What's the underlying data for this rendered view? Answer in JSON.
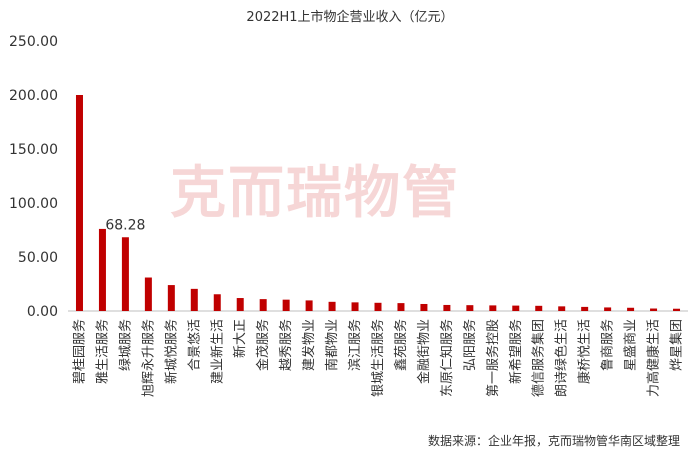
{
  "chart_data": {
    "type": "bar",
    "title": "2022H1上市物企营业收入（亿元）",
    "watermark": "克而瑞物管",
    "source": "数据来源：企业年报，克而瑞物管华南区域整理",
    "categories": [
      "碧桂园服务",
      "雅生活服务",
      "绿城服务",
      "旭辉永升服务",
      "新城悦服务",
      "合景悠活",
      "建业新生活",
      "新大正",
      "金茂服务",
      "越秀服务",
      "建发物业",
      "南都物业",
      "滨江服务",
      "银城生活服务",
      "鑫苑服务",
      "金融街物业",
      "东原仁知服务",
      "弘阳服务",
      "第一服务控股",
      "新希望服务",
      "德信服务集团",
      "朗诗绿色生活",
      "康桥悦生活",
      "鲁商服务",
      "星盛商业",
      "力高健康生活",
      "烨星集团"
    ],
    "values": [
      200.0,
      76.0,
      68.28,
      31.0,
      24.0,
      20.5,
      15.5,
      12.0,
      11.0,
      10.5,
      9.8,
      8.5,
      8.0,
      7.6,
      7.3,
      6.5,
      5.6,
      5.4,
      5.2,
      5.0,
      4.8,
      4.3,
      3.8,
      3.3,
      3.0,
      2.3,
      2.1
    ],
    "data_labels": {
      "2": "68.28"
    },
    "yticks": [
      "0.00",
      "50.00",
      "100.00",
      "150.00",
      "200.00",
      "250.00"
    ],
    "ylim": [
      0,
      250
    ],
    "bar_color": "#c00000",
    "grid": false,
    "legend": "none"
  }
}
